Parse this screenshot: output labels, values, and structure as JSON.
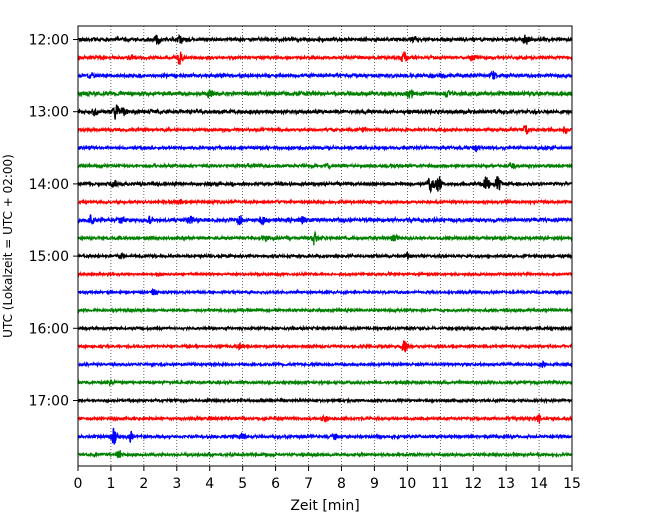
{
  "chart_data": {
    "type": "line",
    "title": "",
    "xlabel": "Zeit  [min]",
    "ylabel": "UTC (Lokalzeit = UTC + 02:00)",
    "xlim": [
      0,
      15
    ],
    "x_ticks": [
      "0",
      "1",
      "2",
      "3",
      "4",
      "5",
      "6",
      "7",
      "8",
      "9",
      "10",
      "11",
      "12",
      "13",
      "14",
      "15"
    ],
    "y_ticks": [
      {
        "label": "12:00",
        "trace_index": 0
      },
      {
        "label": "13:00",
        "trace_index": 4
      },
      {
        "label": "14:00",
        "trace_index": 8
      },
      {
        "label": "15:00",
        "trace_index": 12
      },
      {
        "label": "16:00",
        "trace_index": 16
      },
      {
        "label": "17:00",
        "trace_index": 20
      }
    ],
    "vertical_grid": true,
    "grid_style": "dotted",
    "trace_colors": [
      "#000000",
      "#ff0000",
      "#0000ff",
      "#008000"
    ],
    "traces": [
      {
        "start": "12:00",
        "color": "#000000",
        "noise": 0.18,
        "events": [
          {
            "t": 2.4,
            "amp": 0.55
          },
          {
            "t": 3.1,
            "amp": 0.45
          },
          {
            "t": 10.2,
            "amp": 0.3
          },
          {
            "t": 13.6,
            "amp": 0.5
          }
        ]
      },
      {
        "start": "12:15",
        "color": "#ff0000",
        "noise": 0.15,
        "events": [
          {
            "t": 1.6,
            "amp": 0.3
          },
          {
            "t": 3.1,
            "amp": 0.9
          },
          {
            "t": 9.9,
            "amp": 0.7
          },
          {
            "t": 12.0,
            "amp": 0.3
          }
        ]
      },
      {
        "start": "12:30",
        "color": "#0000ff",
        "noise": 0.18,
        "events": [
          {
            "t": 0.4,
            "amp": 0.35
          },
          {
            "t": 12.6,
            "amp": 0.5
          }
        ]
      },
      {
        "start": "12:45",
        "color": "#008000",
        "noise": 0.2,
        "events": [
          {
            "t": 4.0,
            "amp": 0.4
          },
          {
            "t": 10.1,
            "amp": 0.55
          },
          {
            "t": 11.2,
            "amp": 0.3
          }
        ]
      },
      {
        "start": "13:00",
        "color": "#000000",
        "noise": 0.2,
        "events": [
          {
            "t": 0.5,
            "amp": 0.45
          },
          {
            "t": 1.15,
            "amp": 0.9
          },
          {
            "t": 1.4,
            "amp": 0.4
          }
        ]
      },
      {
        "start": "13:15",
        "color": "#ff0000",
        "noise": 0.15,
        "events": [
          {
            "t": 8.7,
            "amp": 0.3
          },
          {
            "t": 13.6,
            "amp": 0.45
          },
          {
            "t": 14.8,
            "amp": 0.4
          }
        ]
      },
      {
        "start": "13:30",
        "color": "#0000ff",
        "noise": 0.15,
        "events": [
          {
            "t": 12.1,
            "amp": 0.3
          }
        ]
      },
      {
        "start": "13:45",
        "color": "#008000",
        "noise": 0.15,
        "events": [
          {
            "t": 7.6,
            "amp": 0.3
          },
          {
            "t": 13.2,
            "amp": 0.3
          }
        ]
      },
      {
        "start": "14:00",
        "color": "#000000",
        "noise": 0.16,
        "events": [
          {
            "t": 1.1,
            "amp": 0.35
          },
          {
            "t": 10.7,
            "amp": 0.9
          },
          {
            "t": 10.95,
            "amp": 1.0
          },
          {
            "t": 12.4,
            "amp": 0.9
          },
          {
            "t": 12.75,
            "amp": 0.9
          }
        ]
      },
      {
        "start": "14:15",
        "color": "#ff0000",
        "noise": 0.15,
        "events": [
          {
            "t": 3.1,
            "amp": 0.25
          },
          {
            "t": 13.0,
            "amp": 0.3
          }
        ]
      },
      {
        "start": "14:30",
        "color": "#0000ff",
        "noise": 0.2,
        "events": [
          {
            "t": 0.4,
            "amp": 0.5
          },
          {
            "t": 1.3,
            "amp": 0.45
          },
          {
            "t": 2.2,
            "amp": 0.4
          },
          {
            "t": 3.4,
            "amp": 0.45
          },
          {
            "t": 4.9,
            "amp": 0.5
          },
          {
            "t": 5.6,
            "amp": 0.4
          },
          {
            "t": 6.8,
            "amp": 0.4
          }
        ]
      },
      {
        "start": "14:45",
        "color": "#008000",
        "noise": 0.16,
        "events": [
          {
            "t": 5.7,
            "amp": 0.35
          },
          {
            "t": 7.15,
            "amp": 0.8
          },
          {
            "t": 9.6,
            "amp": 0.55
          }
        ]
      },
      {
        "start": "15:00",
        "color": "#000000",
        "noise": 0.14,
        "events": [
          {
            "t": 1.3,
            "amp": 0.3
          },
          {
            "t": 10.0,
            "amp": 0.35
          }
        ]
      },
      {
        "start": "15:15",
        "color": "#ff0000",
        "noise": 0.12,
        "events": []
      },
      {
        "start": "15:30",
        "color": "#0000ff",
        "noise": 0.13,
        "events": [
          {
            "t": 2.3,
            "amp": 0.3
          }
        ]
      },
      {
        "start": "15:45",
        "color": "#008000",
        "noise": 0.13,
        "events": []
      },
      {
        "start": "16:00",
        "color": "#000000",
        "noise": 0.13,
        "events": []
      },
      {
        "start": "16:15",
        "color": "#ff0000",
        "noise": 0.13,
        "events": [
          {
            "t": 4.9,
            "amp": 0.3
          },
          {
            "t": 9.9,
            "amp": 0.8
          }
        ]
      },
      {
        "start": "16:30",
        "color": "#0000ff",
        "noise": 0.13,
        "events": [
          {
            "t": 14.1,
            "amp": 0.45
          }
        ]
      },
      {
        "start": "16:45",
        "color": "#008000",
        "noise": 0.14,
        "events": [
          {
            "t": 1.0,
            "amp": 0.3
          }
        ]
      },
      {
        "start": "17:00",
        "color": "#000000",
        "noise": 0.13,
        "events": []
      },
      {
        "start": "17:15",
        "color": "#ff0000",
        "noise": 0.14,
        "events": [
          {
            "t": 7.5,
            "amp": 0.3
          },
          {
            "t": 14.0,
            "amp": 0.55
          }
        ]
      },
      {
        "start": "17:30",
        "color": "#0000ff",
        "noise": 0.15,
        "events": [
          {
            "t": 1.1,
            "amp": 1.1
          },
          {
            "t": 1.6,
            "amp": 0.6
          },
          {
            "t": 5.0,
            "amp": 0.3
          },
          {
            "t": 7.8,
            "amp": 0.3
          }
        ]
      },
      {
        "start": "17:45",
        "color": "#008000",
        "noise": 0.14,
        "events": [
          {
            "t": 1.25,
            "amp": 0.5
          }
        ]
      }
    ]
  }
}
